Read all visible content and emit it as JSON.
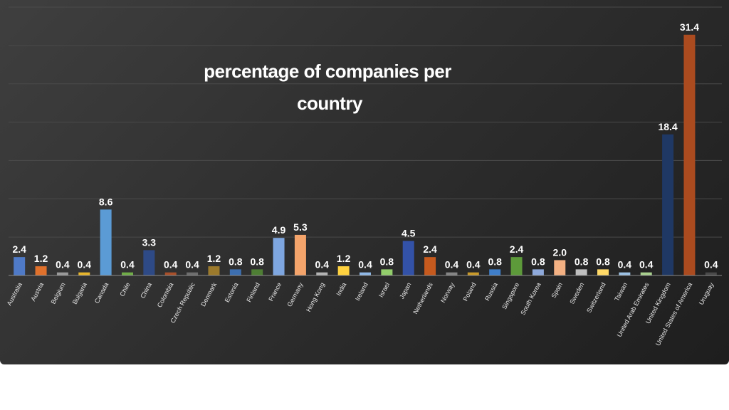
{
  "chart_data": {
    "type": "bar",
    "title_lines": [
      "percentage of companies per",
      "country"
    ],
    "xlabel": "",
    "ylabel": "",
    "ylim": [
      0,
      35
    ],
    "grid": true,
    "categories": [
      "Australia",
      "Austria",
      "Belgium",
      "Bulgaria",
      "Canada",
      "Chile",
      "China",
      "Colombia",
      "Czech Republic",
      "Denmark",
      "Estonia",
      "Finland",
      "France",
      "Germany",
      "Hong Kong",
      "India",
      "Ireland",
      "Israel",
      "Japan",
      "Netherlands",
      "Norway",
      "Poland",
      "Russia",
      "Singapore",
      "South Korea",
      "Spain",
      "Sweden",
      "Switzerland",
      "Taiwan",
      "United Arab Emirates",
      "United Kingdom",
      "United States of America",
      "Uruguay"
    ],
    "values": [
      2.4,
      1.2,
      0.4,
      0.4,
      8.6,
      0.4,
      3.3,
      0.4,
      0.4,
      1.2,
      0.8,
      0.8,
      4.9,
      5.3,
      0.4,
      1.2,
      0.4,
      0.8,
      4.5,
      2.4,
      0.4,
      0.4,
      0.8,
      2.4,
      0.8,
      2.0,
      0.8,
      0.8,
      0.4,
      0.4,
      18.4,
      31.4,
      0.4
    ],
    "value_labels": [
      "2.4",
      "1.2",
      "0.4",
      "0.4",
      "8.6",
      "0.4",
      "3.3",
      "0.4",
      "0.4",
      "1.2",
      "0.8",
      "0.8",
      "4.9",
      "5.3",
      "0.4",
      "1.2",
      "0.4",
      "0.8",
      "4.5",
      "2.4",
      "0.4",
      "0.4",
      "0.8",
      "2.4",
      "0.8",
      "2.0",
      "0.8",
      "0.8",
      "0.4",
      "0.4",
      "18.4",
      "31.4",
      "0.4"
    ],
    "colors": [
      "#4f7ac7",
      "#e0712c",
      "#9a9a9a",
      "#e8b62c",
      "#5b9bd5",
      "#70ad47",
      "#2e4a86",
      "#a9502a",
      "#6e6e6e",
      "#9c7a2c",
      "#3d6fb0",
      "#4e7e34",
      "#7ea6e0",
      "#f4a46b",
      "#b4b4b4",
      "#ffd23f",
      "#8fb8e6",
      "#92cd6b",
      "#3352a8",
      "#c65a1e",
      "#858585",
      "#c99a2a",
      "#3f7ec9",
      "#5d9a3a",
      "#8ea9db",
      "#f4b183",
      "#bfbfbf",
      "#ffd966",
      "#9dc3e6",
      "#a9d18e",
      "#1f3864",
      "#ab4b1f",
      "#4a4a4a"
    ]
  }
}
